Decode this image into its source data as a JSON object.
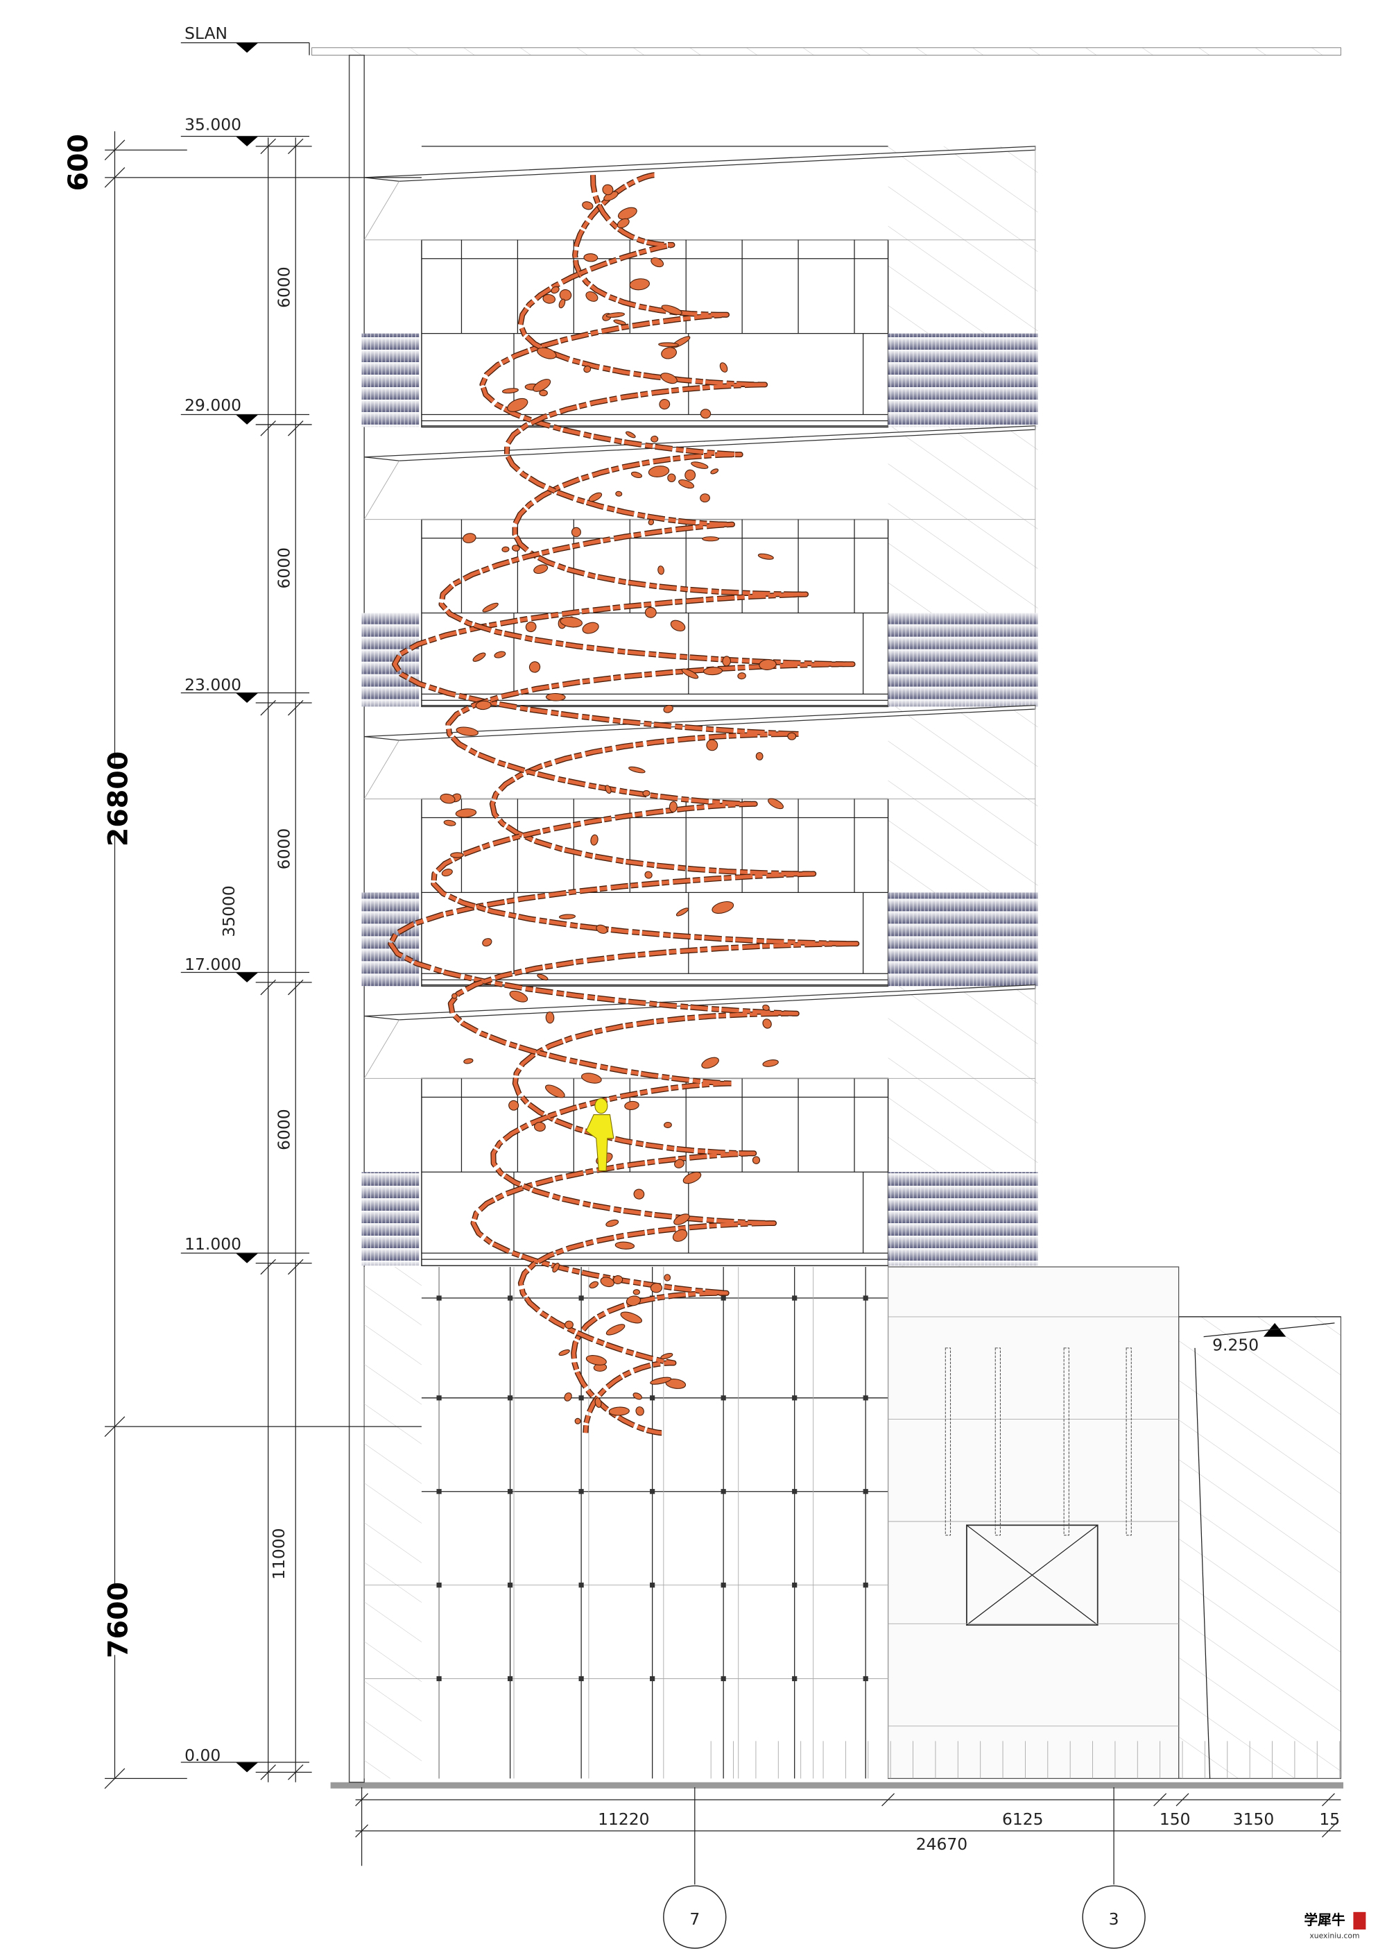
{
  "elevation_marks": [
    "SLAN",
    "35.000",
    "29.000",
    "23.000",
    "17.000",
    "11.000",
    "0.00",
    "9.250"
  ],
  "overall_dimensions": [
    "600",
    "26800",
    "7600"
  ],
  "floor_dimensions": [
    "6000",
    "6000",
    "6000",
    "6000",
    "35000",
    "11000"
  ],
  "bottom_dimensions": [
    "11220",
    "6125",
    "150",
    "3150",
    "15",
    "24670"
  ],
  "grid_bubbles": [
    "7",
    "3"
  ],
  "watermark": {
    "logo": "学犀牛",
    "url": "xuexiniu.com"
  }
}
